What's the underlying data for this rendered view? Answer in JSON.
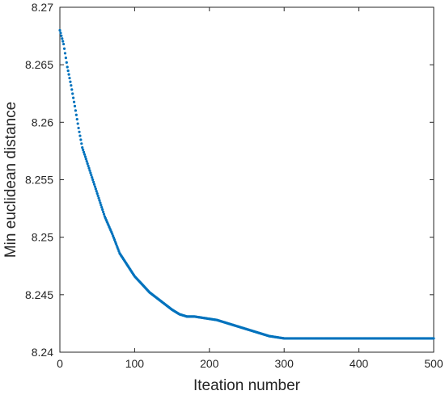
{
  "chart_data": {
    "type": "scatter",
    "xlabel": "Iteation number",
    "ylabel": "Min euclidean distance",
    "xlim": [
      0,
      500
    ],
    "ylim": [
      8.24,
      8.27
    ],
    "xticks": [
      0,
      100,
      200,
      300,
      400,
      500
    ],
    "xtick_labels": [
      "0",
      "100",
      "200",
      "300",
      "400",
      "500"
    ],
    "yticks": [
      8.24,
      8.245,
      8.25,
      8.255,
      8.26,
      8.265,
      8.27
    ],
    "ytick_labels": [
      "8.24",
      "8.245",
      "8.25",
      "8.255",
      "8.26",
      "8.265",
      "8.27"
    ],
    "grid": false,
    "marker_color": "#0072BD",
    "series": [
      {
        "x": [
          0,
          5,
          10,
          15,
          20,
          25,
          30,
          40,
          50,
          60,
          70,
          80,
          90,
          100,
          110,
          120,
          130,
          140,
          150,
          160,
          170,
          180,
          190,
          200,
          210,
          220,
          230,
          240,
          250,
          260,
          270,
          280,
          290,
          300,
          320,
          350,
          400,
          450,
          500
        ],
        "y": [
          8.268,
          8.2668,
          8.2648,
          8.2632,
          8.2614,
          8.2595,
          8.2578,
          8.2558,
          8.2538,
          8.2518,
          8.2503,
          8.2486,
          8.2476,
          8.2466,
          8.2459,
          8.2452,
          8.2447,
          8.2442,
          8.2437,
          8.2433,
          8.2431,
          8.2431,
          8.243,
          8.2429,
          8.2428,
          8.2426,
          8.2424,
          8.2422,
          8.242,
          8.2418,
          8.2416,
          8.2414,
          8.2413,
          8.2412,
          8.2412,
          8.2412,
          8.2412,
          8.2412,
          8.2412
        ]
      }
    ]
  }
}
